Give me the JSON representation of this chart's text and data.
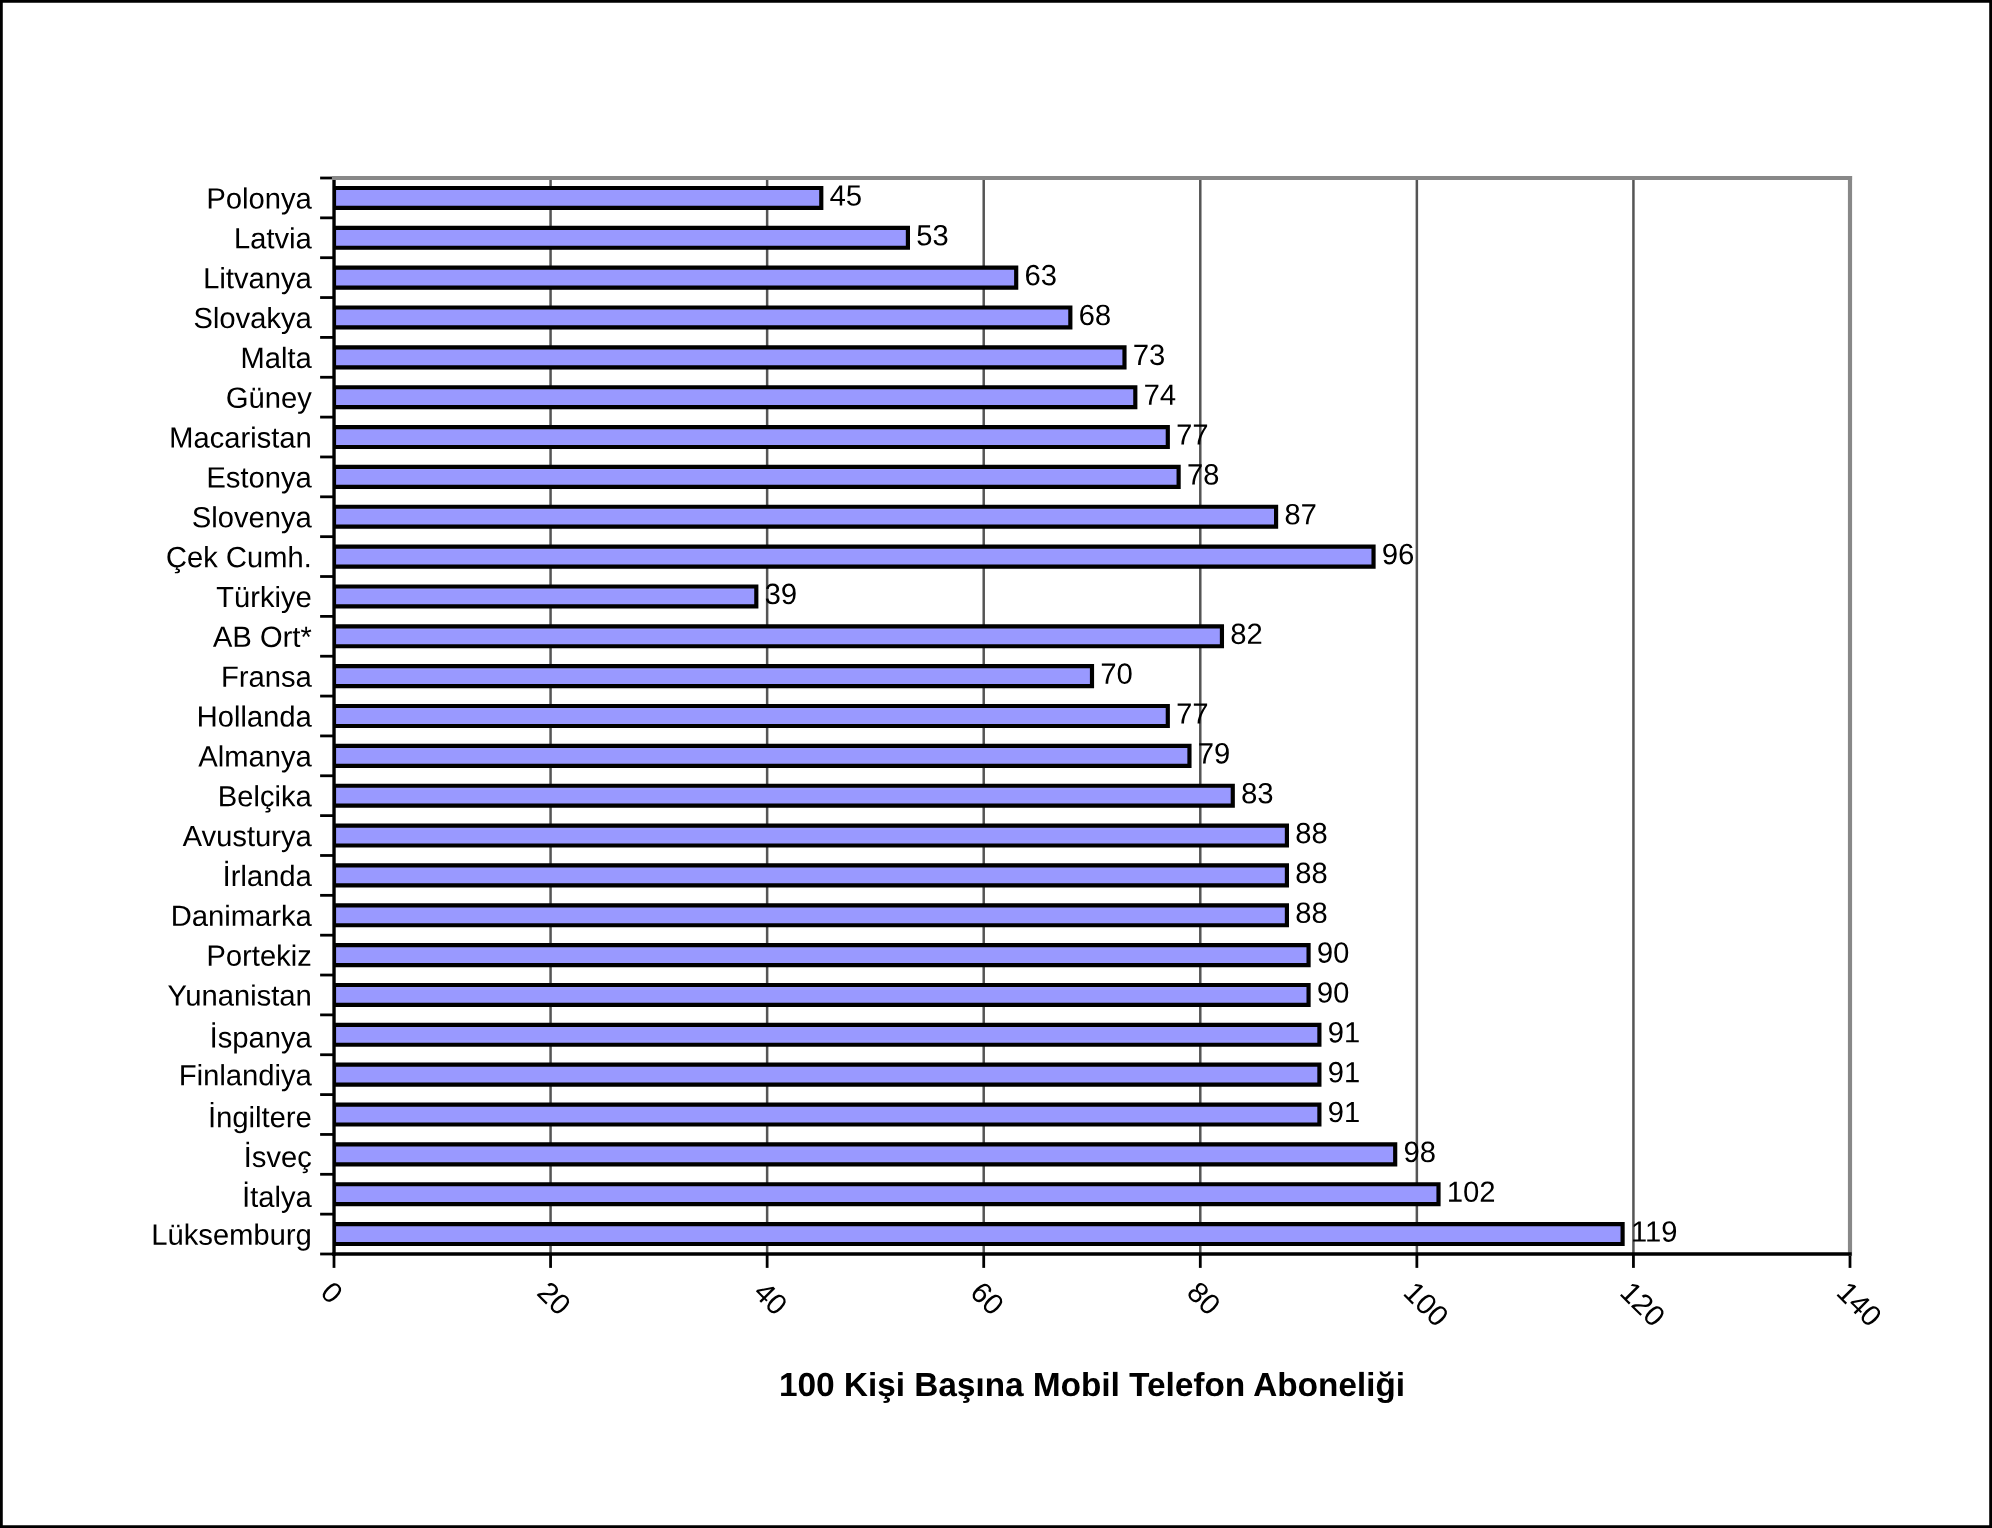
{
  "chart_data": {
    "type": "bar",
    "orientation": "horizontal",
    "xlabel": "100 Kişi Başına Mobil Telefon Aboneliği",
    "categories": [
      "Polonya",
      "Latvia",
      "Litvanya",
      "Slovakya",
      "Malta",
      "Güney",
      "Macaristan",
      "Estonya",
      "Slovenya",
      "Çek Cumh.",
      "Türkiye",
      "AB Ort*",
      "Fransa",
      "Hollanda",
      "Almanya",
      "Belçika",
      "Avusturya",
      "İrlanda",
      "Danimarka",
      "Portekiz",
      "Yunanistan",
      "İspanya",
      "Finlandiya",
      "İngiltere",
      "İsveç",
      "İtalya",
      "Lüksemburg"
    ],
    "values": [
      45,
      53,
      63,
      68,
      73,
      74,
      77,
      78,
      87,
      96,
      39,
      82,
      70,
      77,
      79,
      83,
      88,
      88,
      88,
      90,
      90,
      91,
      91,
      91,
      98,
      102,
      119
    ],
    "color": "#9999ff",
    "data_labels": true,
    "xlim": [
      0,
      140
    ],
    "xticks": [
      0,
      20,
      40,
      60,
      80,
      100,
      120,
      140
    ],
    "grid": "x"
  }
}
